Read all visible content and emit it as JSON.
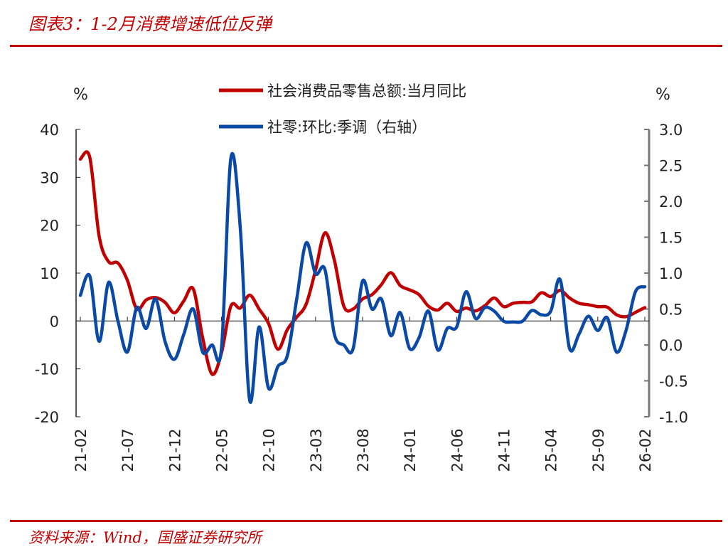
{
  "title": "图表3：1-2月消费增速低位反弹",
  "source": "资料来源：Wind，国盛证券研究所",
  "chart_data": {
    "type": "line",
    "left_axis": {
      "unit": "%",
      "range": [
        -20,
        40
      ],
      "ticks": [
        "40",
        "30",
        "20",
        "10",
        "0",
        "-10",
        "-20"
      ],
      "tick_values": [
        40,
        30,
        20,
        10,
        0,
        -10,
        -20
      ]
    },
    "right_axis": {
      "unit": "%",
      "range": [
        -1.0,
        3.0
      ],
      "ticks": [
        "3.0",
        "2.5",
        "2.0",
        "1.5",
        "1.0",
        "0.5",
        "0.0",
        "-0.5",
        "-1.0"
      ],
      "tick_values": [
        3,
        2.5,
        2,
        1.5,
        1,
        0.5,
        0,
        -0.5,
        -1
      ]
    },
    "x_tick_labels": [
      "21-02",
      "21-07",
      "21-12",
      "22-05",
      "22-10",
      "23-03",
      "23-08",
      "24-01",
      "24-06",
      "24-11",
      "25-04",
      "25-09",
      "26-02"
    ],
    "month_count": 61,
    "legend": [
      "社会消费品零售总额:当月同比",
      "社零:环比:季调（右轴）"
    ],
    "legend_placement": "top-center",
    "colors": {
      "red": "#c00000",
      "blue": "#0a4aa6"
    },
    "series": [
      {
        "name": "社会消费品零售总额:当月同比",
        "axis": "left",
        "color": "#c00000",
        "values": [
          33.8,
          34.2,
          17.7,
          12.4,
          12.1,
          8.5,
          2.5,
          4.4,
          4.9,
          3.9,
          1.7,
          4.2,
          6.7,
          -3.5,
          -11.1,
          -6.7,
          3.1,
          2.7,
          5.4,
          2.5,
          -0.5,
          -5.9,
          -1.8,
          0.8,
          3.5,
          10.6,
          18.4,
          12.7,
          3.1,
          2.5,
          4.6,
          5.5,
          7.6,
          10.1,
          7.4,
          6.5,
          5.5,
          3.1,
          2.3,
          3.7,
          2.0,
          2.7,
          2.1,
          3.2,
          4.8,
          3.0,
          3.7,
          3.9,
          4.0,
          5.9,
          5.1,
          6.4,
          4.8,
          3.7,
          3.4,
          3.0,
          2.9,
          1.3,
          0.9,
          1.8,
          2.8
        ]
      },
      {
        "name": "社零:环比:季调（右轴）",
        "axis": "right",
        "color": "#0a4aa6",
        "values": [
          0.69,
          0.96,
          0.05,
          0.87,
          0.33,
          -0.1,
          0.52,
          0.23,
          0.64,
          0.05,
          -0.2,
          0.15,
          0.5,
          -0.1,
          0.0,
          -0.05,
          2.6,
          1.63,
          -0.77,
          0.25,
          -0.6,
          -0.3,
          -0.15,
          0.64,
          1.42,
          0.99,
          1.05,
          0.15,
          0.0,
          -0.05,
          0.89,
          0.5,
          0.64,
          0.13,
          0.45,
          -0.05,
          0.1,
          0.47,
          -0.07,
          0.23,
          0.25,
          0.74,
          0.37,
          0.52,
          0.47,
          0.33,
          0.32,
          0.33,
          0.48,
          0.42,
          0.47,
          0.91,
          -0.05,
          0.15,
          0.4,
          0.2,
          0.38,
          -0.1,
          0.2,
          0.74,
          0.81
        ]
      }
    ]
  }
}
